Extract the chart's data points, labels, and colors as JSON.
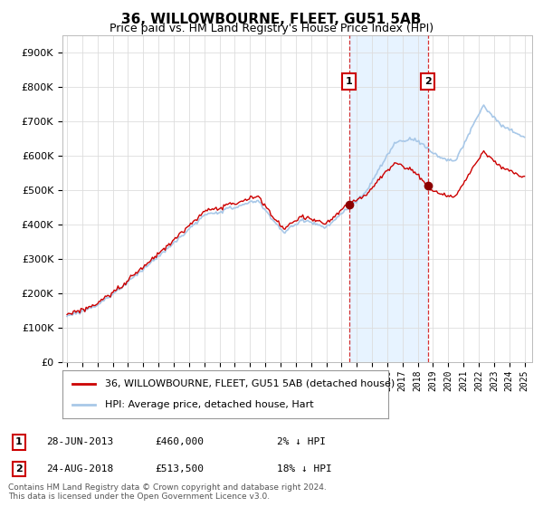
{
  "title": "36, WILLOWBOURNE, FLEET, GU51 5AB",
  "subtitle": "Price paid vs. HM Land Registry's House Price Index (HPI)",
  "ytick_values": [
    0,
    100000,
    200000,
    300000,
    400000,
    500000,
    600000,
    700000,
    800000,
    900000
  ],
  "ylim": [
    0,
    950000
  ],
  "xlim_start": 1994.7,
  "xlim_end": 2025.5,
  "hpi_color": "#a8c8e8",
  "price_color": "#cc0000",
  "sale1_date": 2013.49,
  "sale1_price": 460000,
  "sale2_date": 2018.65,
  "sale2_price": 513500,
  "marker_color": "#8b0000",
  "vline_color": "#cc0000",
  "annotation_box_color": "#cc0000",
  "shade_color": "#ddeeff",
  "legend_label_price": "36, WILLOWBOURNE, FLEET, GU51 5AB (detached house)",
  "legend_label_hpi": "HPI: Average price, detached house, Hart",
  "note1_label": "1",
  "note1_date": "28-JUN-2013",
  "note1_price": "£460,000",
  "note1_pct": "2% ↓ HPI",
  "note2_label": "2",
  "note2_date": "24-AUG-2018",
  "note2_price": "£513,500",
  "note2_pct": "18% ↓ HPI",
  "footer": "Contains HM Land Registry data © Crown copyright and database right 2024.\nThis data is licensed under the Open Government Licence v3.0.",
  "background_color": "#ffffff",
  "grid_color": "#dddddd"
}
